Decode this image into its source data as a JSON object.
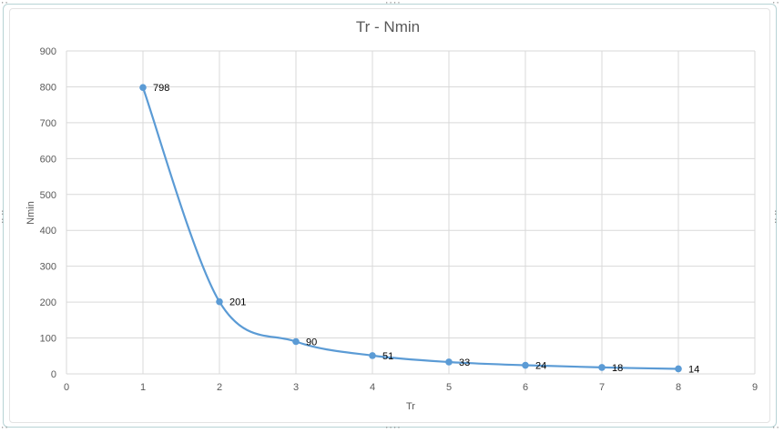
{
  "chart_data": {
    "type": "scatter",
    "title": "Tr - Nmin",
    "xlabel": "Tr",
    "ylabel": "Nmin",
    "xlim": [
      0,
      9
    ],
    "ylim": [
      0,
      900
    ],
    "x_ticks": [
      0,
      1,
      2,
      3,
      4,
      5,
      6,
      7,
      8,
      9
    ],
    "y_ticks": [
      0,
      100,
      200,
      300,
      400,
      500,
      600,
      700,
      800,
      900
    ],
    "grid": true,
    "smoothed_line": true,
    "series": [
      {
        "x": [
          1,
          2,
          3,
          4,
          5,
          6,
          7,
          8
        ],
        "y": [
          798,
          201,
          90,
          51,
          33,
          24,
          18,
          14
        ],
        "labels": [
          "798",
          "201",
          "90",
          "51",
          "33",
          "24",
          "18",
          "14"
        ],
        "color": "#5b9bd5"
      }
    ]
  },
  "colors": {
    "gridline": "#d9d9d9",
    "text": "#595959",
    "series": "#5b9bd5"
  }
}
